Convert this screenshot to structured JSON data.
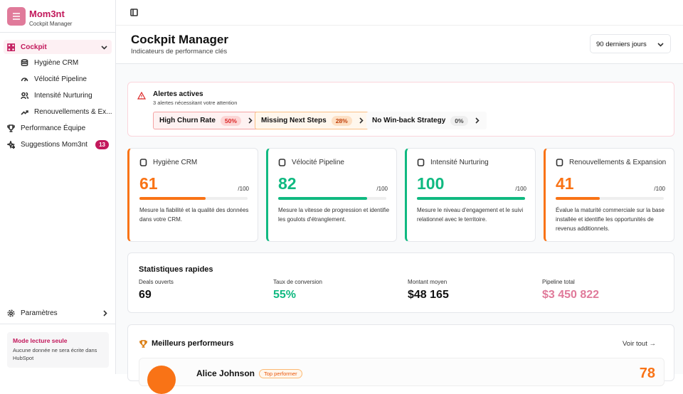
{
  "sidebar": {
    "brand": {
      "name": "Mom3nt",
      "subtitle": "Cockpit Manager"
    },
    "nav": {
      "active": "Cockpit",
      "sub": [
        "Hygiène CRM",
        "Vélocité Pipeline",
        "Intensité Nurturing",
        "Renouvellements & Ex..."
      ],
      "team": "Performance Équipe",
      "suggestions": {
        "label": "Suggestions Mom3nt",
        "badge": "13"
      }
    },
    "settings": "Paramètres",
    "readonly": {
      "title": "Mode lecture seule",
      "text": "Aucune donnée ne sera écrite dans HubSpot"
    }
  },
  "header": {
    "title": "Cockpit Manager",
    "subtitle": "Indicateurs de performance clés",
    "period": "90 derniers jours"
  },
  "alerts": {
    "title": "Alertes actives",
    "subtitle": "3 alertes nécessitant votre attention",
    "items": [
      {
        "label": "High Churn Rate",
        "value": "50%"
      },
      {
        "label": "Missing Next Steps",
        "value": "28%"
      },
      {
        "label": "No Win-back Strategy",
        "value": "0%"
      }
    ]
  },
  "scores": [
    {
      "name": "Hygiène CRM",
      "score": 61,
      "max": "/100",
      "color": "#f97316",
      "text": "Mesure la fiabilité et la qualité des données dans votre CRM."
    },
    {
      "name": "Vélocité Pipeline",
      "score": 82,
      "max": "/100",
      "color": "#10b981",
      "text": "Mesure la vitesse de progression et identifie les goulots d'étranglement."
    },
    {
      "name": "Intensité Nurturing",
      "score": 100,
      "max": "/100",
      "color": "#10b981",
      "text": "Mesure le niveau d'engagement et le suivi relationnel avec le territoire."
    },
    {
      "name": "Renouvellements & Expansion",
      "score": 41,
      "max": "/100",
      "color": "#f97316",
      "text": "Évalue la maturité commerciale sur la base installée et identifie les opportunités de revenus additionnels."
    }
  ],
  "stats": {
    "title": "Statistiques rapides",
    "items": [
      {
        "label": "Deals ouverts",
        "value": "69"
      },
      {
        "label": "Taux de conversion",
        "value": "55%"
      },
      {
        "label": "Montant moyen",
        "value": "$48 165"
      },
      {
        "label": "Pipeline total",
        "value": "$3 450 822"
      }
    ]
  },
  "performers": {
    "title": "Meilleurs performeurs",
    "link": "Voir tout",
    "top": {
      "name": "Alice Johnson",
      "badge": "Top performer",
      "score": "78"
    }
  }
}
